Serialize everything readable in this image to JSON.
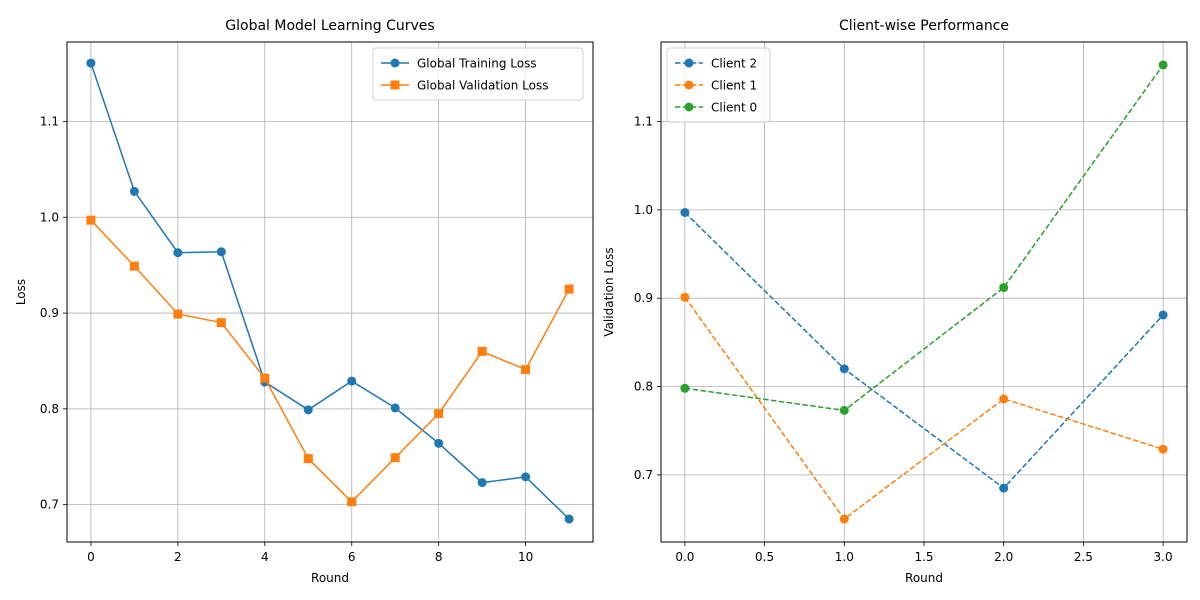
{
  "chart_data": [
    {
      "type": "line",
      "title": "Global Model Learning Curves",
      "xlabel": "Round",
      "ylabel": "Loss",
      "xlim": [
        -0.55,
        11.55
      ],
      "ylim": [
        0.661,
        1.183
      ],
      "xticks": [
        0,
        2,
        4,
        6,
        8,
        10
      ],
      "xtick_labels": [
        "0",
        "2",
        "4",
        "6",
        "8",
        "10"
      ],
      "yticks": [
        0.7,
        0.8,
        0.9,
        1.0,
        1.1
      ],
      "ytick_labels": [
        "0.7",
        "0.8",
        "0.9",
        "1.0",
        "1.1"
      ],
      "grid": true,
      "legend": "upper right",
      "x": [
        0,
        1,
        2,
        3,
        4,
        5,
        6,
        7,
        8,
        9,
        10,
        11
      ],
      "series": [
        {
          "name": "Global Training Loss",
          "color": "#1f77b4",
          "marker": "circle",
          "linestyle": "solid",
          "values": [
            1.161,
            1.027,
            0.963,
            0.964,
            0.828,
            0.799,
            0.829,
            0.801,
            0.764,
            0.723,
            0.729,
            0.685
          ]
        },
        {
          "name": "Global Validation Loss",
          "color": "#ff7f0e",
          "marker": "square",
          "linestyle": "solid",
          "values": [
            0.997,
            0.949,
            0.899,
            0.89,
            0.832,
            0.748,
            0.703,
            0.749,
            0.795,
            0.86,
            0.841,
            0.925
          ]
        }
      ]
    },
    {
      "type": "line",
      "title": "Client-wise Performance",
      "xlabel": "Round",
      "ylabel": "Validation Loss",
      "xlim": [
        -0.15,
        3.15
      ],
      "ylim": [
        0.624,
        1.19
      ],
      "xticks": [
        0,
        0.5,
        1,
        1.5,
        2,
        2.5,
        3
      ],
      "xtick_labels": [
        "0.0",
        "0.5",
        "1.0",
        "1.5",
        "2.0",
        "2.5",
        "3.0"
      ],
      "yticks": [
        0.7,
        0.8,
        0.9,
        1.0,
        1.1
      ],
      "ytick_labels": [
        "0.7",
        "0.8",
        "0.9",
        "1.0",
        "1.1"
      ],
      "grid": true,
      "legend": "upper left",
      "x": [
        0,
        1,
        2,
        3
      ],
      "series": [
        {
          "name": "Client 2",
          "color": "#1f77b4",
          "marker": "circle",
          "linestyle": "dashed",
          "values": [
            0.997,
            0.82,
            0.685,
            0.881
          ]
        },
        {
          "name": "Client 1",
          "color": "#ff7f0e",
          "marker": "circle",
          "linestyle": "dashed",
          "values": [
            0.901,
            0.65,
            0.786,
            0.729
          ]
        },
        {
          "name": "Client 0",
          "color": "#2ca02c",
          "marker": "circle",
          "linestyle": "dashed",
          "values": [
            0.798,
            0.773,
            0.912,
            1.164
          ]
        }
      ]
    }
  ]
}
